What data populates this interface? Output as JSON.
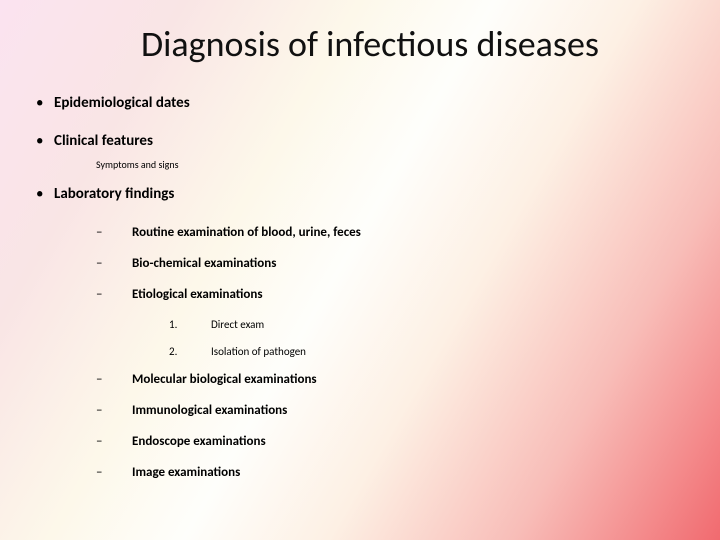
{
  "title": "Diagnosis of infectious diseases",
  "points": {
    "p1": "Epidemiological dates",
    "p2": "Clinical features",
    "p2_sub": "Symptoms and signs",
    "p3": "Laboratory findings"
  },
  "lab": {
    "l1": "Routine examination of blood, urine, feces",
    "l2": "Bio-chemical examinations",
    "l3": "Etiological examinations",
    "l3_1_num": "1.",
    "l3_1": "Direct exam",
    "l3_2_num": "2.",
    "l3_2": "Isolation of pathogen",
    "l4": "Molecular biological examinations",
    "l5": "Immunological examinations",
    "l6": "Endoscope examinations",
    "l7": "Image examinations"
  },
  "style": {
    "title_fontsize": 36,
    "level1_fontsize": 15,
    "level2_fontsize": 13,
    "level3_fontsize": 11,
    "sub_fontsize": 10,
    "text_color": "#000000",
    "gradient_stops": [
      "#fbe3f0",
      "#f9e5e5",
      "#fdf8ea",
      "#fefefb",
      "#fdf0e4",
      "#f8bdb8",
      "#f16a6f"
    ]
  }
}
